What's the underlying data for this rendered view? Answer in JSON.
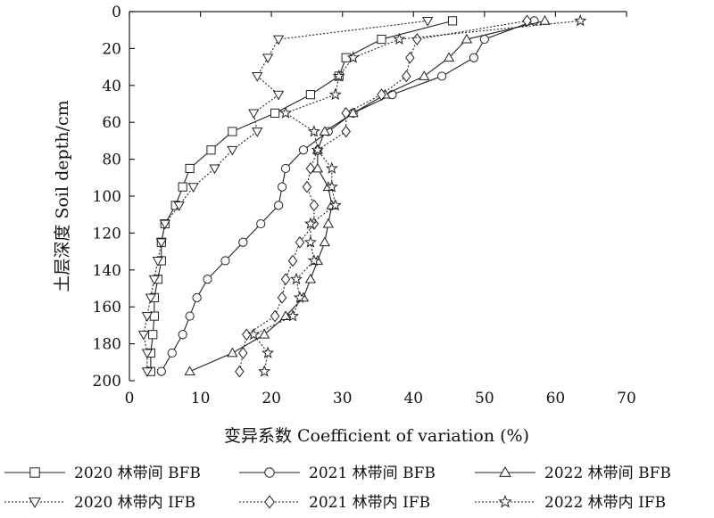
{
  "chart_data": {
    "type": "line",
    "xlabel": "变异系数 Coefficient of variation (%)",
    "ylabel": "土层深度 Soil depth/cm",
    "xlim": [
      0,
      70
    ],
    "ylim": [
      0,
      200
    ],
    "y_inverted": true,
    "x_axis_position": "top",
    "x_ticks": [
      0,
      10,
      20,
      30,
      40,
      50,
      60,
      70
    ],
    "y_ticks": [
      0,
      20,
      40,
      60,
      80,
      100,
      120,
      140,
      160,
      180,
      200
    ],
    "grid": false,
    "legend_position": "bottom",
    "series": [
      {
        "name": "2020 林带间 BFB",
        "marker": "square",
        "line": "solid",
        "points": [
          [
            45.5,
            5
          ],
          [
            35.5,
            15
          ],
          [
            30.5,
            25
          ],
          [
            29.5,
            35
          ],
          [
            25.5,
            45
          ],
          [
            20.5,
            55
          ],
          [
            14.5,
            65
          ],
          [
            11.5,
            75
          ],
          [
            8.5,
            85
          ],
          [
            7.5,
            95
          ],
          [
            6.5,
            105
          ],
          [
            5,
            115
          ],
          [
            4.5,
            125
          ],
          [
            4.5,
            135
          ],
          [
            4,
            145
          ],
          [
            3.5,
            155
          ],
          [
            3.5,
            165
          ],
          [
            3.3,
            175
          ],
          [
            3,
            185
          ],
          [
            3,
            195
          ]
        ]
      },
      {
        "name": "2021 林带间 BFB",
        "marker": "circle",
        "line": "solid",
        "points": [
          [
            57,
            5
          ],
          [
            50,
            15
          ],
          [
            48.5,
            25
          ],
          [
            44,
            35
          ],
          [
            37,
            45
          ],
          [
            31.5,
            55
          ],
          [
            28,
            65
          ],
          [
            24.5,
            75
          ],
          [
            22,
            85
          ],
          [
            21.5,
            95
          ],
          [
            21,
            105
          ],
          [
            18.5,
            115
          ],
          [
            16,
            125
          ],
          [
            13.5,
            135
          ],
          [
            11,
            145
          ],
          [
            9.5,
            155
          ],
          [
            8.5,
            165
          ],
          [
            7.5,
            175
          ],
          [
            6,
            185
          ],
          [
            4.5,
            195
          ]
        ]
      },
      {
        "name": "2022 林带间 BFB",
        "marker": "triangle-up",
        "line": "solid",
        "points": [
          [
            58.5,
            5
          ],
          [
            47.5,
            15
          ],
          [
            45,
            25
          ],
          [
            41.5,
            35
          ],
          [
            36,
            45
          ],
          [
            31.5,
            55
          ],
          [
            27.5,
            65
          ],
          [
            26.5,
            75
          ],
          [
            26.5,
            85
          ],
          [
            28,
            95
          ],
          [
            28.5,
            105
          ],
          [
            28,
            115
          ],
          [
            27.5,
            125
          ],
          [
            26.5,
            135
          ],
          [
            25.5,
            145
          ],
          [
            24.5,
            155
          ],
          [
            22,
            165
          ],
          [
            19,
            175
          ],
          [
            14.5,
            185
          ],
          [
            8.5,
            195
          ]
        ]
      },
      {
        "name": "2020 林带内 IFB",
        "marker": "triangle-down",
        "line": "dotted",
        "points": [
          [
            42,
            5
          ],
          [
            21,
            15
          ],
          [
            19.5,
            25
          ],
          [
            18,
            35
          ],
          [
            21,
            45
          ],
          [
            17.5,
            55
          ],
          [
            18,
            65
          ],
          [
            14.5,
            75
          ],
          [
            12,
            85
          ],
          [
            9,
            95
          ],
          [
            7,
            105
          ],
          [
            5,
            115
          ],
          [
            4.5,
            125
          ],
          [
            4,
            135
          ],
          [
            3.5,
            145
          ],
          [
            3,
            155
          ],
          [
            2.5,
            165
          ],
          [
            2,
            175
          ],
          [
            2.5,
            185
          ],
          [
            2.5,
            195
          ]
        ]
      },
      {
        "name": "2021 林带内 IFB",
        "marker": "diamond",
        "line": "dotted",
        "points": [
          [
            56,
            5
          ],
          [
            40.5,
            15
          ],
          [
            39.5,
            25
          ],
          [
            39,
            35
          ],
          [
            35.5,
            45
          ],
          [
            30.5,
            55
          ],
          [
            30.5,
            65
          ],
          [
            26.5,
            75
          ],
          [
            25.5,
            85
          ],
          [
            25,
            95
          ],
          [
            26,
            105
          ],
          [
            26,
            115
          ],
          [
            24,
            125
          ],
          [
            23,
            135
          ],
          [
            22,
            145
          ],
          [
            21.5,
            155
          ],
          [
            20.5,
            165
          ],
          [
            16.5,
            175
          ],
          [
            16,
            185
          ],
          [
            15.5,
            195
          ]
        ]
      },
      {
        "name": "2022 林带内 IFB",
        "marker": "star",
        "line": "dotted",
        "points": [
          [
            63.5,
            5
          ],
          [
            38,
            15
          ],
          [
            31.5,
            25
          ],
          [
            29.5,
            35
          ],
          [
            29,
            45
          ],
          [
            22,
            55
          ],
          [
            26,
            65
          ],
          [
            26.5,
            75
          ],
          [
            28.5,
            85
          ],
          [
            28.5,
            95
          ],
          [
            29,
            105
          ],
          [
            25.5,
            115
          ],
          [
            25.5,
            125
          ],
          [
            26,
            135
          ],
          [
            23.5,
            145
          ],
          [
            24,
            155
          ],
          [
            23,
            165
          ],
          [
            17.5,
            175
          ],
          [
            19.5,
            185
          ],
          [
            19,
            195
          ]
        ]
      }
    ]
  }
}
